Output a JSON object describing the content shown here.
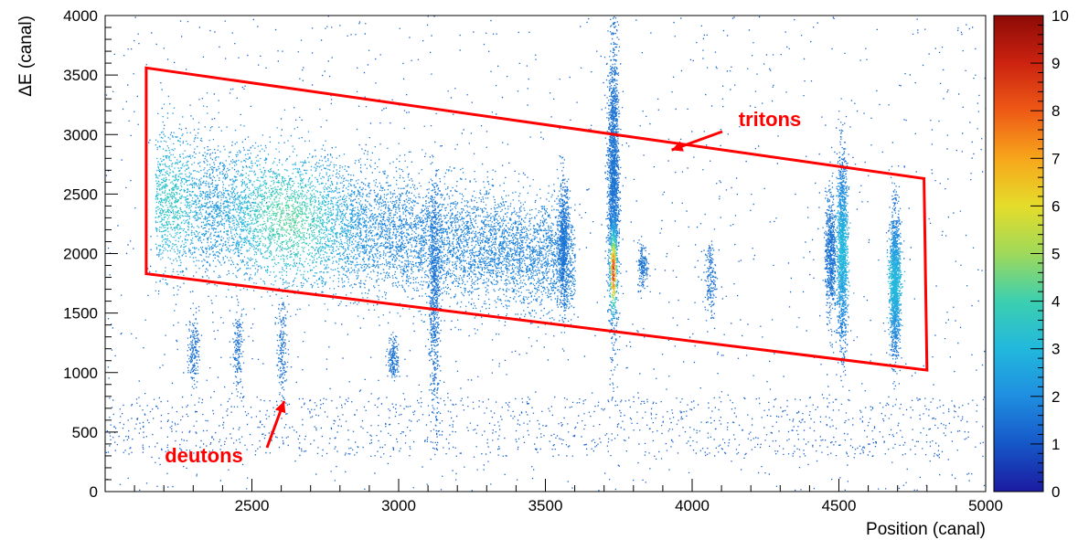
{
  "chart_data": {
    "type": "heatmap",
    "title": "",
    "xlabel": "Position (canal)",
    "ylabel": "ΔE (canal)",
    "xlim": [
      2000,
      5000
    ],
    "ylim": [
      0,
      4000
    ],
    "x_ticks": [
      2500,
      3000,
      3500,
      4000,
      4500,
      5000
    ],
    "y_ticks": [
      0,
      500,
      1000,
      1500,
      2000,
      2500,
      3000,
      3500,
      4000
    ],
    "x_tick_labels": [
      "2500",
      "3000",
      "3500",
      "4000",
      "4500",
      "5000"
    ],
    "y_tick_labels": [
      "0",
      "500",
      "1000",
      "1500",
      "2000",
      "2500",
      "3000",
      "3500",
      "4000"
    ],
    "colorbar": {
      "range": [
        0,
        10
      ],
      "ticks": [
        0,
        1,
        2,
        3,
        4,
        5,
        6,
        7,
        8,
        9,
        10
      ],
      "tick_labels": [
        "0",
        "1",
        "2",
        "3",
        "4",
        "5",
        "6",
        "7",
        "8",
        "9",
        "10"
      ],
      "colors": [
        "#1b1aa0",
        "#1657c8",
        "#1f8ee0",
        "#22b8dd",
        "#3ccfb0",
        "#9fd95a",
        "#e5dc2a",
        "#f7a61b",
        "#ee5a16",
        "#cc2310",
        "#8c0a06"
      ]
    },
    "clusters": [
      {
        "x_range": [
          2170,
          3600
        ],
        "y_top": [
          3000,
          2350
        ],
        "y_bottom": [
          1900,
          1550
        ],
        "density": "high"
      },
      {
        "x": 3120,
        "y_range": [
          750,
          2600
        ],
        "density": "medium"
      },
      {
        "x": 3560,
        "y_range": [
          1550,
          2600
        ],
        "density": "medium"
      },
      {
        "x": 3730,
        "y_range": [
          1350,
          3700
        ],
        "peak_y": 1850,
        "density": "very-high"
      },
      {
        "x": 3830,
        "y_range": [
          1700,
          2100
        ],
        "density": "low"
      },
      {
        "x": 4060,
        "y_range": [
          1500,
          2100
        ],
        "density": "low"
      },
      {
        "x": 4470,
        "y_range": [
          1500,
          2500
        ],
        "density": "medium"
      },
      {
        "x": 4510,
        "y_range": [
          1250,
          2800
        ],
        "density": "high"
      },
      {
        "x": 4690,
        "y_range": [
          1150,
          2350
        ],
        "density": "high"
      },
      {
        "x": 2450,
        "y_range": [
          850,
          1550
        ],
        "density": "low"
      },
      {
        "x": 2600,
        "y_range": [
          800,
          1600
        ],
        "density": "low"
      },
      {
        "x": 2300,
        "y_range": [
          900,
          1500
        ],
        "density": "low"
      },
      {
        "x": 2980,
        "y_range": [
          950,
          1300
        ],
        "density": "low"
      }
    ],
    "cut_polygon": {
      "color": "#ff0000",
      "points": [
        [
          2140,
          3560
        ],
        [
          4790,
          2630
        ],
        [
          4800,
          1020
        ],
        [
          2140,
          1830
        ]
      ]
    },
    "annotations": [
      {
        "text": "tritons",
        "color": "#ff0000",
        "arrow_to": [
          3930,
          2870
        ]
      },
      {
        "text": "deutons",
        "color": "#ff0000",
        "arrow_to": [
          2610,
          760
        ]
      }
    ]
  }
}
